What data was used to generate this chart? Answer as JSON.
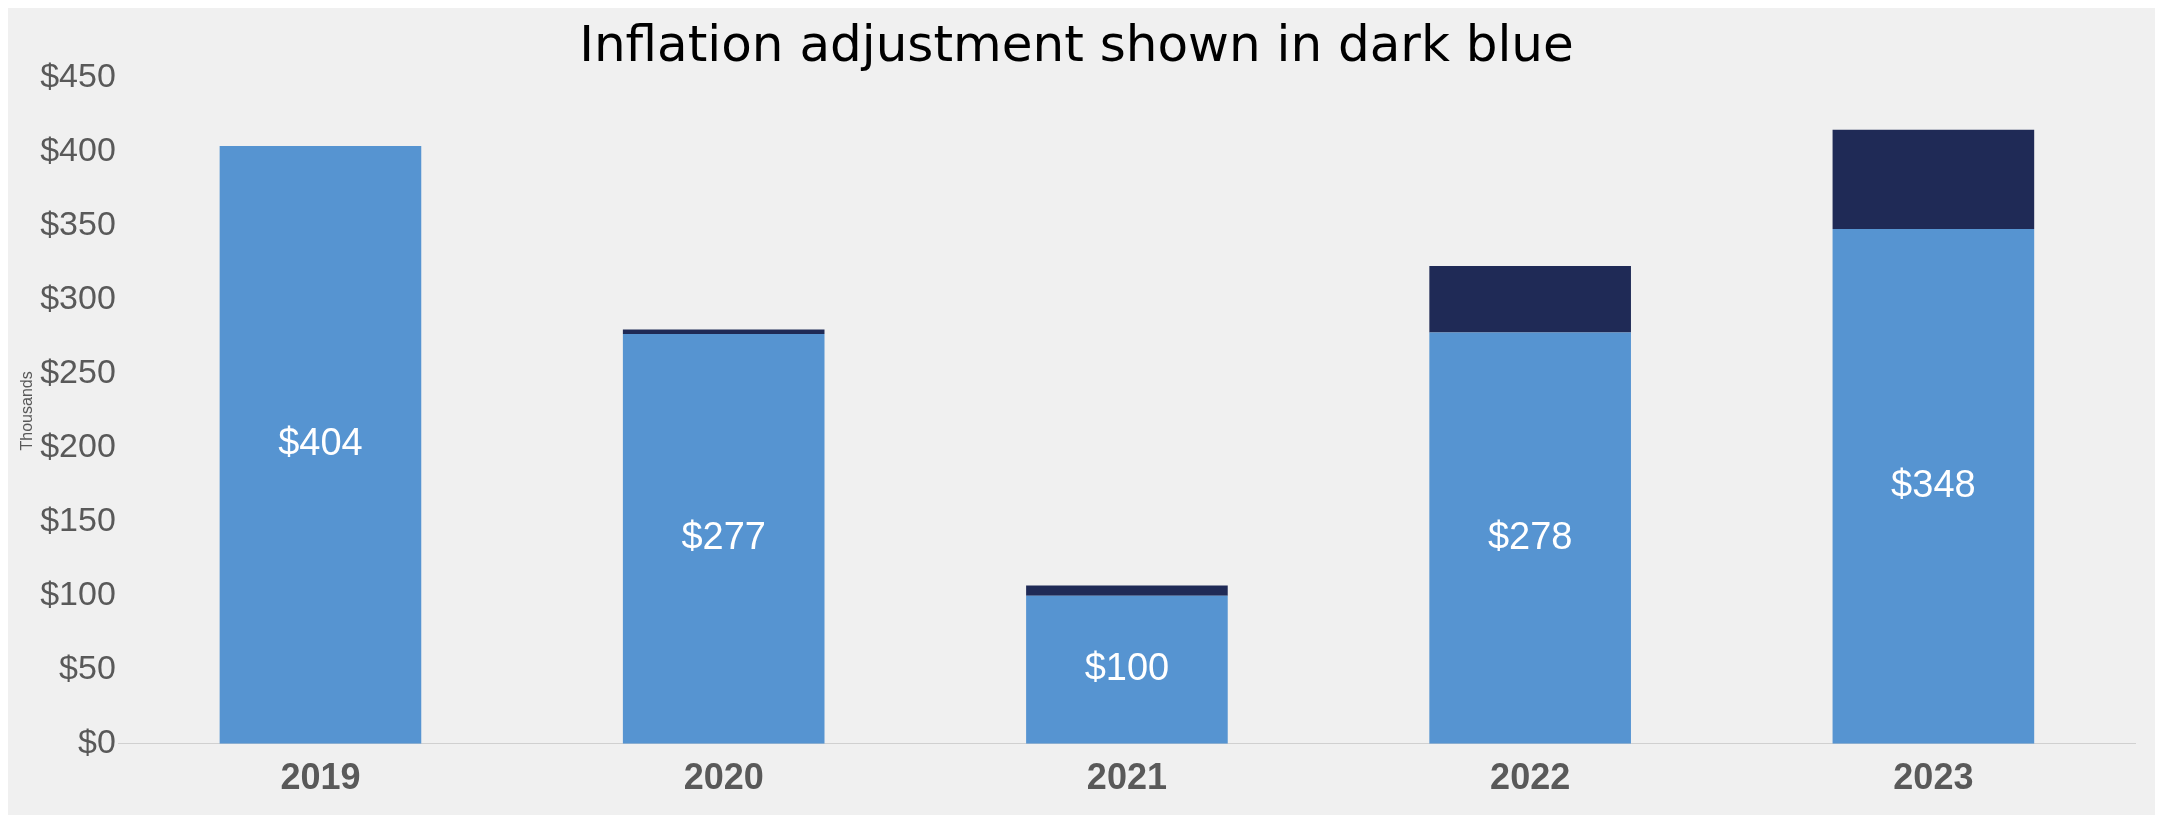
{
  "chart_data": {
    "type": "bar",
    "title": "Inflation adjustment shown in dark blue",
    "ylabel": "Thousands",
    "categories": [
      "2019",
      "2020",
      "2021",
      "2022",
      "2023"
    ],
    "stacked": true,
    "series": [
      {
        "color": "#5694d1",
        "values": [
          404,
          277,
          100,
          278,
          348
        ],
        "value_labels": [
          "$404",
          "$277",
          "$100",
          "$278",
          "$348"
        ]
      },
      {
        "color": "#1f2a56",
        "values": [
          0,
          3,
          7,
          45,
          67
        ]
      }
    ],
    "ylim": [
      0,
      450
    ],
    "yticks": [
      {
        "value": 0,
        "label": "$0"
      },
      {
        "value": 50,
        "label": "$50"
      },
      {
        "value": 100,
        "label": "$100"
      },
      {
        "value": 150,
        "label": "$150"
      },
      {
        "value": 200,
        "label": "$200"
      },
      {
        "value": 250,
        "label": "$250"
      },
      {
        "value": 300,
        "label": "$300"
      },
      {
        "value": 350,
        "label": "$350"
      },
      {
        "value": 400,
        "label": "$400"
      },
      {
        "value": 450,
        "label": "$450"
      }
    ],
    "grid": false,
    "legend": false
  }
}
